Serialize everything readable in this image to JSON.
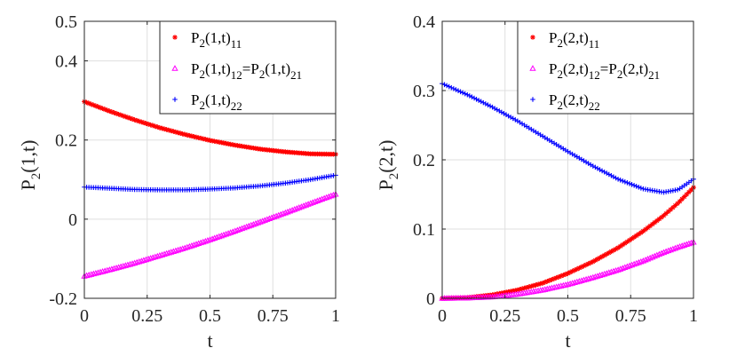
{
  "chart_data": [
    {
      "type": "line",
      "xlabel": "t",
      "ylabel_main": "P",
      "ylabel_sub": "2",
      "ylabel_rest": "(1,t)",
      "xlim": [
        0,
        1
      ],
      "ylim": [
        -0.2,
        0.5
      ],
      "xticks": [
        0,
        0.25,
        0.5,
        0.75,
        1
      ],
      "xtick_labels": [
        "0",
        "0.25",
        "0.5",
        "0.75",
        "1"
      ],
      "yticks": [
        -0.2,
        0,
        0.2,
        0.4,
        0.5
      ],
      "ytick_labels": [
        "-0.2",
        "0",
        "0.2",
        "0.4",
        "0.5"
      ],
      "grid": true,
      "legend_position": "top-right",
      "x": [
        0,
        0.1,
        0.2,
        0.3,
        0.4,
        0.5,
        0.6,
        0.7,
        0.8,
        0.9,
        1.0
      ],
      "series": [
        {
          "name": "P2(1,t)11",
          "color": "#ff0000",
          "marker": "*",
          "legend": {
            "base": "P",
            "s1": "2",
            "mid": "(1,t)",
            "s2": "11"
          },
          "values": [
            0.297,
            0.273,
            0.251,
            0.231,
            0.214,
            0.199,
            0.187,
            0.177,
            0.17,
            0.165,
            0.164
          ]
        },
        {
          "name": "P2(1,t)12=P2(1,t)21",
          "color": "#ff00ff",
          "marker": "triangle",
          "legend": {
            "base": "P",
            "s1": "2",
            "mid": "(1,t)",
            "s2": "12",
            "eq": "=P",
            "s3": "2",
            "mid2": "(1,t)",
            "s4": "21"
          },
          "values": [
            -0.144,
            -0.128,
            -0.111,
            -0.092,
            -0.073,
            -0.052,
            -0.03,
            -0.007,
            0.016,
            0.04,
            0.063
          ]
        },
        {
          "name": "P2(1,t)22",
          "color": "#0000ff",
          "marker": "+",
          "legend": {
            "base": "P",
            "s1": "2",
            "mid": "(1,t)",
            "s2": "22"
          },
          "values": [
            0.081,
            0.078,
            0.075,
            0.074,
            0.074,
            0.076,
            0.079,
            0.084,
            0.091,
            0.1,
            0.111
          ]
        }
      ]
    },
    {
      "type": "line",
      "xlabel": "t",
      "ylabel_main": "P",
      "ylabel_sub": "2",
      "ylabel_rest": "(2,t)",
      "xlim": [
        0,
        1
      ],
      "ylim": [
        0,
        0.4
      ],
      "xticks": [
        0,
        0.25,
        0.5,
        0.75,
        1
      ],
      "xtick_labels": [
        "0",
        "0.25",
        "0.5",
        "0.75",
        "1"
      ],
      "yticks": [
        0,
        0.1,
        0.2,
        0.3,
        0.4
      ],
      "ytick_labels": [
        "0",
        "0.1",
        "0.2",
        "0.3",
        "0.4"
      ],
      "grid": true,
      "legend_position": "top-right",
      "x": [
        0,
        0.1,
        0.2,
        0.3,
        0.4,
        0.5,
        0.6,
        0.7,
        0.8,
        0.88,
        0.94,
        1.0
      ],
      "series": [
        {
          "name": "P2(2,t)11",
          "color": "#ff0000",
          "marker": "*",
          "legend": {
            "base": "P",
            "s1": "2",
            "mid": "(2,t)",
            "s2": "11"
          },
          "values": [
            0.0,
            0.001,
            0.005,
            0.012,
            0.022,
            0.036,
            0.053,
            0.073,
            0.097,
            0.119,
            0.138,
            0.16
          ]
        },
        {
          "name": "P2(2,t)12=P2(2,t)21",
          "color": "#ff00ff",
          "marker": "triangle",
          "legend": {
            "base": "P",
            "s1": "2",
            "mid": "(2,t)",
            "s2": "12",
            "eq": "=P",
            "s3": "2",
            "mid2": "(2,t)",
            "s4": "21"
          },
          "values": [
            0.0,
            0.0005,
            0.002,
            0.006,
            0.012,
            0.02,
            0.03,
            0.041,
            0.054,
            0.066,
            0.074,
            0.081
          ]
        },
        {
          "name": "P2(2,t)22",
          "color": "#0000ff",
          "marker": "+",
          "legend": {
            "base": "P",
            "s1": "2",
            "mid": "(2,t)",
            "s2": "22"
          },
          "values": [
            0.31,
            0.294,
            0.276,
            0.256,
            0.234,
            0.212,
            0.191,
            0.172,
            0.158,
            0.153,
            0.157,
            0.172
          ]
        }
      ]
    }
  ]
}
